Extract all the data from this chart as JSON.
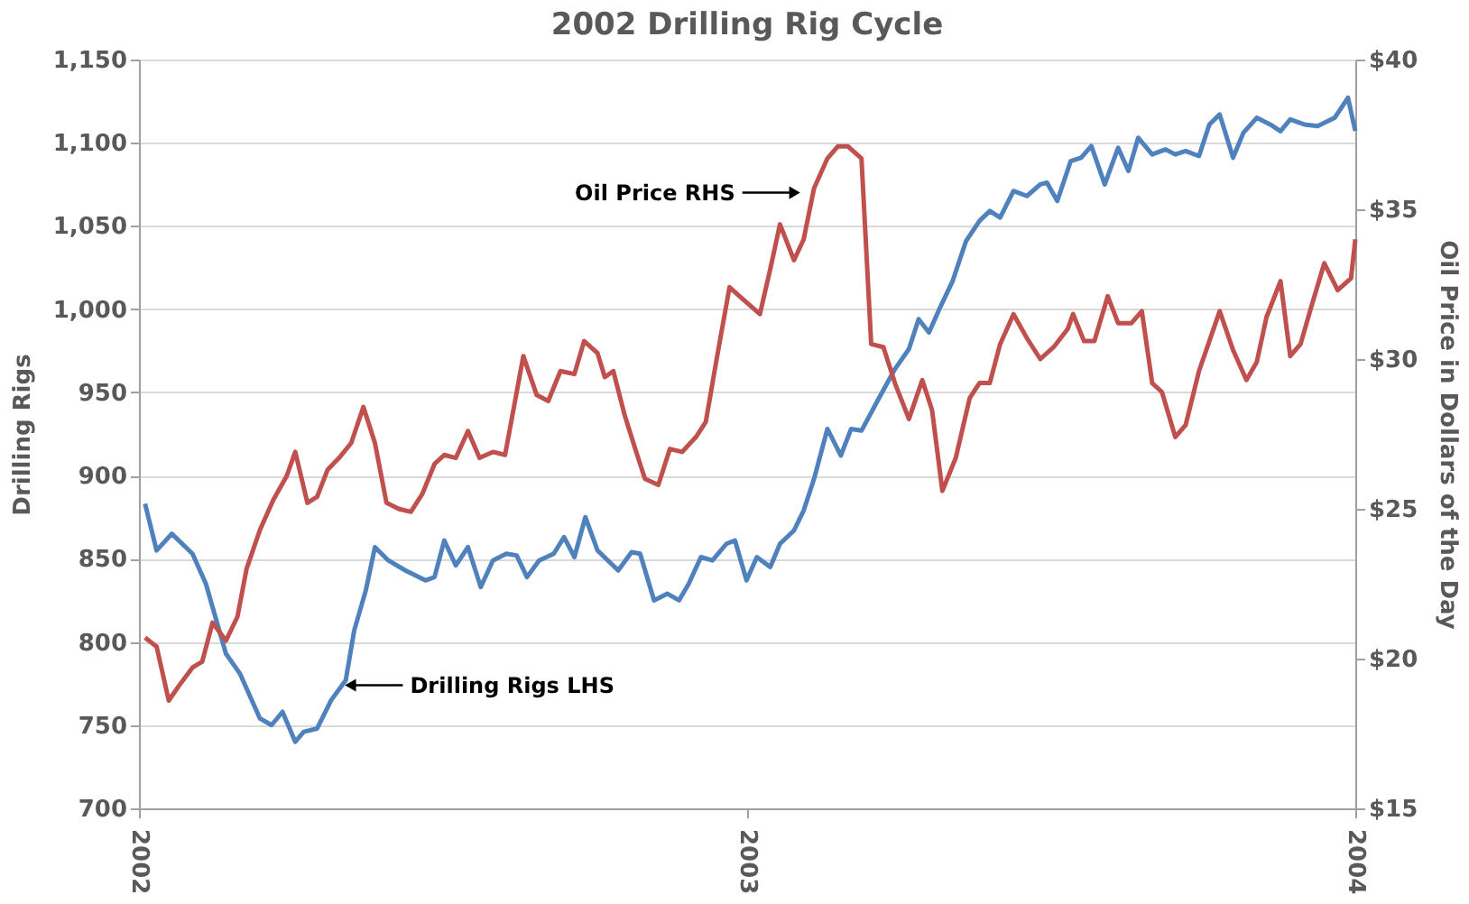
{
  "chart_data": {
    "type": "line",
    "title": "2002 Drilling Rig Cycle",
    "ylabel": "Drilling Rigs",
    "y2label": "Oil Price in Dollars of the Day",
    "xlim": [
      2002,
      2004
    ],
    "xticks": [
      2002,
      2003,
      2004
    ],
    "ylim": [
      700,
      1150
    ],
    "yticks": [
      700,
      750,
      800,
      850,
      900,
      950,
      {
        "value": 1000,
        "label": "1,000"
      },
      {
        "value": 1050,
        "label": "1,050"
      },
      {
        "value": 1100,
        "label": "1,100"
      },
      {
        "value": 1150,
        "label": "1,150"
      }
    ],
    "y2lim": [
      15,
      40
    ],
    "y2ticks": [
      {
        "value": 15,
        "label": "$15"
      },
      {
        "value": 20,
        "label": "$20"
      },
      {
        "value": 25,
        "label": "$25"
      },
      {
        "value": 30,
        "label": "$30"
      },
      {
        "value": 35,
        "label": "$35"
      },
      {
        "value": 40,
        "label": "$40"
      }
    ],
    "grid": "y",
    "marker": "none",
    "line_style": "solid",
    "annotations": [
      {
        "text": "Oil Price  RHS",
        "x": 2003.093,
        "y": 1070
      },
      {
        "text": "Drilling Rigs  LHS",
        "x": 2002.333,
        "y": 774
      }
    ],
    "series": [
      {
        "color": "#4f81bd",
        "x": [
          2002.01,
          2002.029,
          2002.054,
          2002.088,
          2002.11,
          2002.143,
          2002.166,
          2002.199,
          2002.218,
          2002.236,
          2002.257,
          2002.271,
          2002.293,
          2002.316,
          2002.34,
          2002.354,
          2002.373,
          2002.388,
          2002.41,
          2002.438,
          2002.471,
          2002.486,
          2002.502,
          2002.521,
          2002.541,
          2002.562,
          2002.582,
          2002.604,
          2002.621,
          2002.638,
          2002.658,
          2002.682,
          2002.699,
          2002.716,
          2002.734,
          2002.754,
          2002.788,
          2002.81,
          2002.824,
          2002.847,
          2002.869,
          2002.888,
          2002.904,
          2002.924,
          2002.943,
          2002.966,
          2002.98,
          2002.999,
          2003.016,
          2003.038,
          2003.054,
          2003.077,
          2003.093,
          2003.11,
          2003.132,
          2003.154,
          2003.171,
          2003.188,
          2003.216,
          2003.243,
          2003.266,
          2003.282,
          2003.299,
          2003.316,
          2003.338,
          2003.36,
          2003.382,
          2003.399,
          2003.416,
          2003.438,
          2003.46,
          2003.482,
          2003.493,
          2003.51,
          2003.532,
          2003.549,
          2003.566,
          2003.588,
          2003.61,
          2003.627,
          2003.643,
          2003.666,
          2003.688,
          2003.704,
          2003.721,
          2003.743,
          2003.76,
          2003.777,
          2003.799,
          2003.816,
          2003.838,
          2003.86,
          2003.877,
          2003.893,
          2003.916,
          2003.938,
          2003.966,
          2003.988,
          2004.0
        ],
        "values": [
          883,
          855,
          865,
          853,
          835,
          793,
          781,
          754,
          750,
          758,
          740,
          746,
          748,
          765,
          777,
          807,
          831,
          857,
          849,
          843,
          837,
          839,
          861,
          846,
          857,
          833,
          849,
          853,
          852,
          839,
          849,
          853,
          863,
          851,
          875,
          855,
          843,
          854,
          853,
          825,
          829,
          825,
          835,
          851,
          849,
          859,
          861,
          837,
          851,
          845,
          859,
          867,
          879,
          898,
          928,
          912,
          928,
          927,
          946,
          964,
          976,
          994,
          986,
          1000,
          1017,
          1041,
          1053,
          1059,
          1055,
          1071,
          1068,
          1075,
          1076,
          1065,
          1089,
          1091,
          1098,
          1075,
          1097,
          1083,
          1103,
          1093,
          1096,
          1093,
          1095,
          1092,
          1111,
          1117,
          1091,
          1106,
          1115,
          1111,
          1107,
          1114,
          1111,
          1110,
          1115,
          1127,
          1107
        ]
      },
      {
        "color": "#c0504d",
        "axis": "y2",
        "x": [
          2002.01,
          2002.029,
          2002.049,
          2002.066,
          2002.088,
          2002.104,
          2002.121,
          2002.143,
          2002.162,
          2002.177,
          2002.199,
          2002.221,
          2002.243,
          2002.257,
          2002.277,
          2002.293,
          2002.31,
          2002.329,
          2002.349,
          2002.369,
          2002.388,
          2002.407,
          2002.427,
          2002.447,
          2002.466,
          2002.486,
          2002.502,
          2002.521,
          2002.541,
          2002.56,
          2002.582,
          2002.602,
          2002.632,
          2002.654,
          2002.673,
          2002.693,
          2002.716,
          2002.732,
          2002.754,
          2002.766,
          2002.78,
          2002.799,
          2002.816,
          2002.832,
          2002.854,
          2002.873,
          2002.893,
          2002.916,
          2002.932,
          2002.949,
          2002.971,
          2002.993,
          2003.021,
          2003.038,
          2003.054,
          2003.077,
          2003.093,
          2003.11,
          2003.132,
          2003.149,
          2003.166,
          2003.188,
          2003.204,
          2003.224,
          2003.243,
          2003.266,
          2003.288,
          2003.304,
          2003.321,
          2003.343,
          2003.366,
          2003.382,
          2003.399,
          2003.416,
          2003.438,
          2003.46,
          2003.482,
          2003.504,
          2003.527,
          2003.536,
          2003.554,
          2003.571,
          2003.593,
          2003.61,
          2003.632,
          2003.649,
          2003.666,
          2003.682,
          2003.704,
          2003.721,
          2003.743,
          2003.76,
          2003.777,
          2003.799,
          2003.821,
          2003.838,
          2003.854,
          2003.877,
          2003.893,
          2003.91,
          2003.927,
          2003.949,
          2003.971,
          2003.993,
          2004.0
        ],
        "values": [
          20.7,
          20.4,
          18.6,
          19.1,
          19.7,
          19.9,
          21.2,
          20.6,
          21.4,
          23.0,
          24.3,
          25.3,
          26.1,
          26.9,
          25.2,
          25.4,
          26.3,
          26.7,
          27.2,
          28.4,
          27.2,
          25.2,
          25.0,
          24.9,
          25.5,
          26.5,
          26.8,
          26.7,
          27.6,
          26.7,
          26.9,
          26.8,
          30.1,
          28.8,
          28.6,
          29.6,
          29.5,
          30.6,
          30.2,
          29.4,
          29.6,
          28.1,
          27.0,
          26.0,
          25.8,
          27.0,
          26.9,
          27.4,
          27.9,
          29.9,
          32.4,
          32.0,
          31.5,
          33.0,
          34.5,
          33.3,
          34.0,
          35.7,
          36.7,
          37.1,
          37.1,
          36.7,
          30.5,
          30.4,
          29.2,
          28.0,
          29.3,
          28.3,
          25.6,
          26.7,
          28.7,
          29.2,
          29.2,
          30.5,
          31.5,
          30.7,
          30.0,
          30.4,
          31.0,
          31.5,
          30.6,
          30.6,
          32.1,
          31.2,
          31.2,
          31.6,
          29.2,
          28.9,
          27.4,
          27.8,
          29.6,
          30.6,
          31.6,
          30.3,
          29.3,
          29.9,
          31.4,
          32.6,
          30.1,
          30.5,
          31.7,
          33.2,
          32.3,
          32.7,
          34.0
        ]
      }
    ]
  }
}
